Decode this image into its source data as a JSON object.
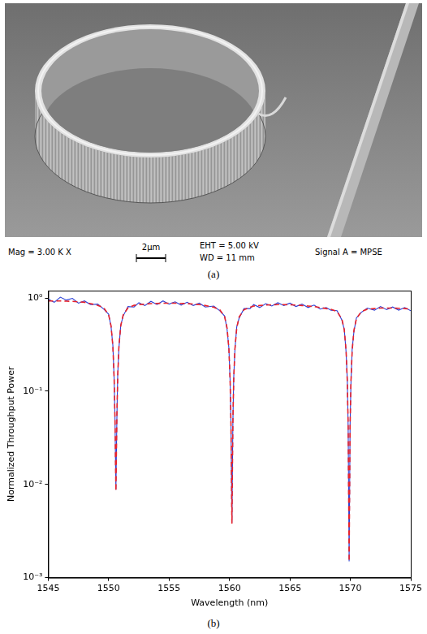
{
  "panel_a": {
    "label": "(a)",
    "info_bar": {
      "mag": "Mag = 3.00 K X",
      "scale_bar": "2µm",
      "eht": "EHT = 5.00 kV",
      "wd": "WD = 11 mm",
      "signal": "Signal A = MPSE"
    }
  },
  "panel_b": {
    "label": "(b)"
  },
  "chart_data": {
    "type": "line",
    "x_label": "Wavelength (nm)",
    "y_label": "Normalized Throughput Power",
    "x": [
      1545,
      1545.5,
      1546,
      1546.5,
      1547,
      1547.5,
      1548,
      1548.5,
      1549.1,
      1549.6,
      1550.0,
      1550.2,
      1550.35,
      1550.45,
      1550.52,
      1550.6,
      1550.68,
      1550.75,
      1550.85,
      1551.0,
      1551.2,
      1551.6,
      1552.1,
      1552.5,
      1553,
      1553.5,
      1554,
      1554.5,
      1555,
      1555.5,
      1556,
      1556.5,
      1557,
      1557.5,
      1558,
      1558.7,
      1559.2,
      1559.6,
      1559.8,
      1559.95,
      1560.05,
      1560.12,
      1560.2,
      1560.28,
      1560.35,
      1560.45,
      1560.6,
      1560.8,
      1561.2,
      1561.7,
      1562,
      1562.5,
      1563,
      1563.5,
      1564,
      1564.5,
      1565,
      1565.5,
      1566,
      1566.5,
      1567,
      1567.5,
      1568,
      1568.4,
      1568.9,
      1569.3,
      1569.5,
      1569.65,
      1569.75,
      1569.82,
      1569.9,
      1569.98,
      1570.05,
      1570.15,
      1570.3,
      1570.5,
      1570.9,
      1571.4,
      1572,
      1572.5,
      1573,
      1573.5,
      1574,
      1574.5,
      1575
    ],
    "series": [
      {
        "color": "#2b3fd6",
        "line_style": "solid",
        "values": [
          0.97,
          0.9,
          1.02,
          0.95,
          0.99,
          0.88,
          0.93,
          0.85,
          0.86,
          0.76,
          0.67,
          0.49,
          0.31,
          0.14,
          0.055,
          0.0088,
          0.05,
          0.15,
          0.29,
          0.51,
          0.64,
          0.81,
          0.8,
          0.89,
          0.83,
          0.92,
          0.85,
          0.93,
          0.86,
          0.91,
          0.84,
          0.9,
          0.83,
          0.88,
          0.8,
          0.82,
          0.73,
          0.64,
          0.46,
          0.29,
          0.13,
          0.047,
          0.0039,
          0.045,
          0.14,
          0.28,
          0.49,
          0.61,
          0.77,
          0.77,
          0.85,
          0.79,
          0.87,
          0.82,
          0.89,
          0.83,
          0.88,
          0.81,
          0.86,
          0.79,
          0.84,
          0.76,
          0.79,
          0.74,
          0.73,
          0.58,
          0.46,
          0.26,
          0.13,
          0.041,
          0.0015,
          0.044,
          0.12,
          0.28,
          0.44,
          0.61,
          0.7,
          0.78,
          0.74,
          0.81,
          0.75,
          0.8,
          0.74,
          0.79,
          0.73
        ]
      },
      {
        "color": "#e8232b",
        "line_style": "dashed",
        "values": [
          0.93,
          0.93,
          0.93,
          0.925,
          0.92,
          0.91,
          0.9,
          0.87,
          0.834,
          0.784,
          0.657,
          0.502,
          0.303,
          0.143,
          0.052,
          0.0085,
          0.052,
          0.143,
          0.303,
          0.502,
          0.657,
          0.784,
          0.834,
          0.85,
          0.86,
          0.87,
          0.875,
          0.88,
          0.88,
          0.88,
          0.875,
          0.87,
          0.86,
          0.85,
          0.83,
          0.796,
          0.748,
          0.627,
          0.477,
          0.285,
          0.133,
          0.046,
          0.0038,
          0.046,
          0.133,
          0.285,
          0.477,
          0.627,
          0.748,
          0.796,
          0.82,
          0.83,
          0.84,
          0.845,
          0.85,
          0.85,
          0.845,
          0.84,
          0.83,
          0.82,
          0.81,
          0.79,
          0.77,
          0.758,
          0.713,
          0.597,
          0.453,
          0.271,
          0.125,
          0.042,
          0.0015,
          0.042,
          0.125,
          0.271,
          0.453,
          0.597,
          0.713,
          0.758,
          0.77,
          0.78,
          0.78,
          0.78,
          0.775,
          0.77,
          0.76
        ]
      }
    ],
    "xlim": [
      1545,
      1575
    ],
    "xticks": [
      1545,
      1550,
      1555,
      1560,
      1565,
      1570,
      1575
    ],
    "ylim": [
      0.001,
      1.2
    ],
    "yticks": [
      {
        "value": 0.001,
        "label": "10⁻³"
      },
      {
        "value": 0.01,
        "label": "10⁻²"
      },
      {
        "value": 0.1,
        "label": "10⁻¹"
      },
      {
        "value": 1,
        "label": "10⁰"
      }
    ],
    "log": "y",
    "grid": false
  }
}
